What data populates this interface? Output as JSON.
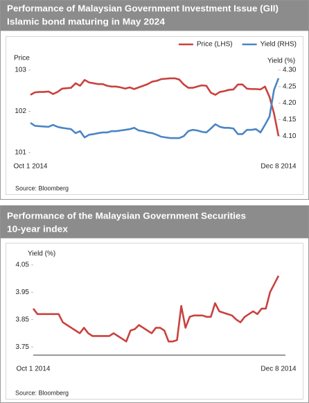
{
  "chart_data": [
    {
      "type": "line",
      "title": [
        "Performance of Malaysian Government Investment Issue (GII)",
        "Islamic bond maturing in May 2024"
      ],
      "ylabel": "Price",
      "y2label": "Yield (%)",
      "categories": [
        "Oct 1 2014",
        null,
        null,
        null,
        null,
        null,
        null,
        null,
        null,
        null,
        null,
        null,
        null,
        null,
        null,
        null,
        null,
        null,
        null,
        null,
        null,
        null,
        null,
        null,
        null,
        null,
        null,
        null,
        null,
        null,
        null,
        null,
        null,
        null,
        null,
        null,
        null,
        null,
        null,
        null,
        null,
        null,
        null,
        null,
        null,
        null,
        null,
        null,
        null,
        null,
        null,
        null,
        null,
        null,
        null,
        "Dec 8 2014"
      ],
      "series": [
        {
          "name": "Price (LHS)",
          "color": "#c9413d",
          "values": [
            102.4,
            102.46,
            102.47,
            102.47,
            102.48,
            102.42,
            102.47,
            102.55,
            102.56,
            102.57,
            102.68,
            102.62,
            102.76,
            102.7,
            102.68,
            102.66,
            102.66,
            102.62,
            102.6,
            102.6,
            102.58,
            102.55,
            102.58,
            102.54,
            102.58,
            102.62,
            102.66,
            102.72,
            102.74,
            102.78,
            102.79,
            102.8,
            102.8,
            102.77,
            102.65,
            102.57,
            102.57,
            102.6,
            102.63,
            102.62,
            102.45,
            102.4,
            102.47,
            102.49,
            102.52,
            102.53,
            102.65,
            102.65,
            102.55,
            102.54,
            102.54,
            102.53,
            102.6,
            102.35,
            101.95,
            101.4
          ]
        },
        {
          "name": "Yield (RHS)",
          "color": "#4a85c3",
          "axis": "y2",
          "values": [
            4.14,
            4.131,
            4.13,
            4.129,
            4.128,
            4.134,
            4.128,
            4.125,
            4.123,
            4.121,
            4.109,
            4.115,
            4.096,
            4.104,
            4.106,
            4.109,
            4.111,
            4.111,
            4.115,
            4.115,
            4.117,
            4.119,
            4.121,
            4.125,
            4.117,
            4.115,
            4.111,
            4.109,
            4.104,
            4.098,
            4.096,
            4.094,
            4.094,
            4.094,
            4.1,
            4.115,
            4.119,
            4.117,
            4.113,
            4.111,
            4.123,
            4.136,
            4.128,
            4.125,
            4.125,
            4.123,
            4.106,
            4.106,
            4.119,
            4.119,
            4.121,
            4.111,
            4.134,
            4.159,
            4.24,
            4.275
          ]
        }
      ],
      "ylim": [
        101,
        103
      ],
      "yticks": [
        101,
        102,
        103
      ],
      "y2lim": [
        4.05,
        4.3
      ],
      "y2ticks": [
        {
          "value": 4.1,
          "label": "4.10"
        },
        4.15,
        {
          "value": 4.2,
          "label": "4.20"
        },
        4.25,
        {
          "value": 4.3,
          "label": "4.30"
        }
      ],
      "source": "Source: Bloomberg"
    },
    {
      "type": "line",
      "title": [
        "Performance of the Malaysian Government Securities",
        "10-year index"
      ],
      "ylabel": "Yield (%)",
      "categories": [
        "Oct 1 2014",
        null,
        null,
        null,
        null,
        null,
        null,
        null,
        null,
        null,
        null,
        null,
        null,
        null,
        null,
        null,
        null,
        null,
        null,
        null,
        null,
        null,
        null,
        null,
        null,
        null,
        null,
        null,
        null,
        null,
        null,
        null,
        null,
        null,
        null,
        null,
        null,
        null,
        null,
        null,
        null,
        null,
        null,
        null,
        null,
        null,
        null,
        null,
        null,
        null,
        null,
        null,
        null,
        null,
        null,
        null,
        null,
        null,
        "Dec 8 2014"
      ],
      "series": [
        {
          "color": "#c9413d",
          "values": [
            3.89,
            3.87,
            3.87,
            3.87,
            3.87,
            3.87,
            3.87,
            3.84,
            3.83,
            3.82,
            3.81,
            3.8,
            3.82,
            3.8,
            3.79,
            3.79,
            3.79,
            3.79,
            3.79,
            3.8,
            3.79,
            3.78,
            3.77,
            3.81,
            3.815,
            3.83,
            3.82,
            3.81,
            3.8,
            3.82,
            3.82,
            3.81,
            3.77,
            3.77,
            3.775,
            3.9,
            3.82,
            3.86,
            3.865,
            3.865,
            3.865,
            3.86,
            3.86,
            3.91,
            3.88,
            3.875,
            3.87,
            3.865,
            3.85,
            3.84,
            3.86,
            3.87,
            3.88,
            3.87,
            3.89,
            3.89,
            3.95,
            3.98,
            4.01
          ]
        }
      ],
      "ylim": [
        3.72,
        4.08
      ],
      "yticks": [
        3.75,
        3.85,
        3.95,
        4.05
      ],
      "source": "Source: Bloomberg"
    }
  ]
}
